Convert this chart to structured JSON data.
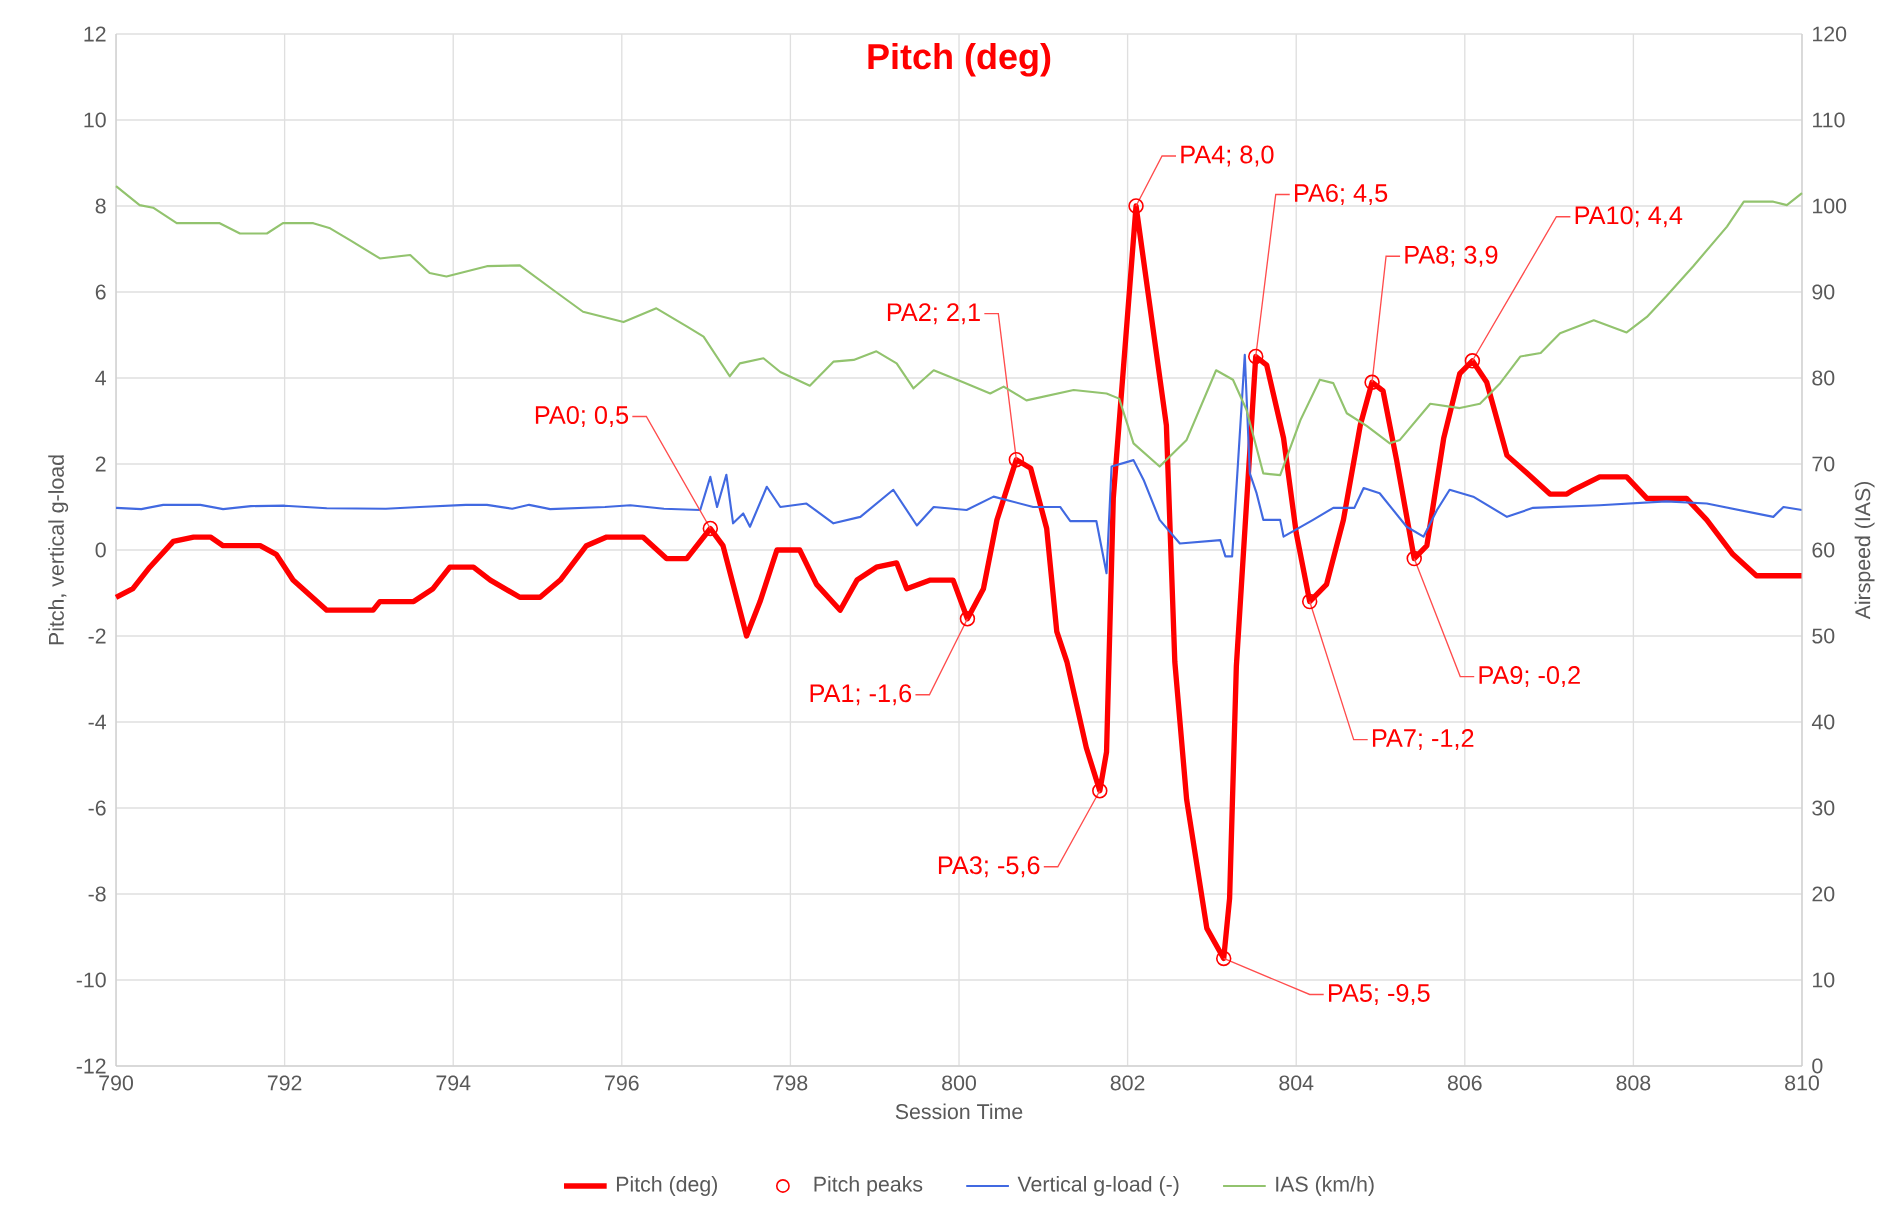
{
  "chart_data": {
    "type": "line",
    "title": "Pitch (deg)",
    "xlabel": "Session Time",
    "ylabel": "Pitch, vertical g-load",
    "y2label": "Airspeed (IAS)",
    "xlim": [
      790,
      810
    ],
    "xticks": [
      790,
      792,
      794,
      796,
      798,
      800,
      802,
      804,
      806,
      808,
      810
    ],
    "ylim": [
      -12,
      12
    ],
    "yticks": [
      -12,
      -10,
      -8,
      -6,
      -4,
      -2,
      0,
      2,
      4,
      6,
      8,
      10,
      12
    ],
    "y2lim": [
      0,
      120
    ],
    "y2ticks": [
      0,
      10,
      20,
      30,
      40,
      50,
      60,
      70,
      80,
      90,
      100,
      110,
      120
    ],
    "grid": true,
    "legend": "bottom",
    "series": [
      {
        "name": "Pitch (deg)",
        "color": "#ff0000",
        "x": [
          790,
          790.2,
          790.4,
          790.68,
          790.92,
          791.12,
          791.27,
          791.71,
          791.9,
          792.1,
          792.5,
          793.05,
          793.13,
          793.53,
          793.76,
          793.96,
          794.24,
          794.44,
          794.79,
          795.03,
          795.27,
          795.58,
          795.82,
          796.25,
          796.53,
          796.77,
          797.05,
          797.2,
          797.48,
          797.64,
          797.84,
          798.11,
          798.31,
          798.59,
          798.79,
          799.02,
          799.26,
          799.38,
          799.66,
          799.93,
          800.1,
          800.29,
          800.45,
          800.68,
          800.85,
          801.04,
          801.16,
          801.28,
          801.51,
          801.67,
          801.75,
          801.83,
          802.1,
          802.46,
          802.56,
          802.7,
          802.94,
          803.14,
          803.21,
          803.29,
          803.52,
          803.65,
          803.85,
          804.0,
          804.16,
          804.36,
          804.56,
          804.76,
          804.9,
          805.03,
          805.19,
          805.4,
          805.55,
          805.75,
          805.94,
          806.09,
          806.26,
          806.5,
          806.73,
          807.01,
          807.21,
          807.29,
          807.6,
          807.92,
          808.16,
          808.63,
          808.87,
          809.18,
          809.46,
          809.74,
          809.86,
          810
        ],
        "values": [
          -1.1,
          -0.9,
          -0.4,
          0.2,
          0.3,
          0.3,
          0.1,
          0.1,
          -0.1,
          -0.7,
          -1.4,
          -1.4,
          -1.2,
          -1.2,
          -0.9,
          -0.4,
          -0.4,
          -0.7,
          -1.1,
          -1.1,
          -0.7,
          0.1,
          0.3,
          0.3,
          -0.2,
          -0.2,
          0.5,
          0.1,
          -2.0,
          -1.2,
          0.0,
          0.0,
          -0.8,
          -1.4,
          -0.7,
          -0.4,
          -0.3,
          -0.9,
          -0.7,
          -0.7,
          -1.6,
          -0.9,
          0.7,
          2.1,
          1.9,
          0.5,
          -1.9,
          -2.6,
          -4.6,
          -5.6,
          -4.7,
          1.2,
          8.0,
          2.9,
          -2.6,
          -5.8,
          -8.8,
          -9.5,
          -8.1,
          -2.7,
          4.5,
          4.3,
          2.6,
          0.4,
          -1.2,
          -0.8,
          0.7,
          2.9,
          3.9,
          3.7,
          2.1,
          -0.2,
          0.1,
          2.6,
          4.1,
          4.4,
          3.9,
          2.2,
          1.8,
          1.3,
          1.3,
          1.4,
          1.7,
          1.7,
          1.2,
          1.2,
          0.7,
          -0.1,
          -0.6,
          -0.6,
          -0.6,
          -0.6
        ]
      },
      {
        "name": "Pitch peaks",
        "type": "scatter",
        "marker": "circle",
        "color": "#ff0000",
        "x": [
          797.05,
          800.1,
          800.68,
          801.67,
          802.1,
          803.14,
          803.52,
          804.16,
          804.9,
          805.4,
          806.09
        ],
        "values": [
          0.5,
          -1.6,
          2.1,
          -5.6,
          8.0,
          -9.5,
          4.5,
          -1.2,
          3.9,
          -0.2,
          4.4
        ]
      },
      {
        "name": "Vertical g-load (-)",
        "color": "#4169e1",
        "x": [
          790,
          790.3,
          790.56,
          791.0,
          791.27,
          791.6,
          792.0,
          792.5,
          793.2,
          793.6,
          794.15,
          794.4,
          794.7,
          794.9,
          795.15,
          795.8,
          796.1,
          796.5,
          796.93,
          797.05,
          797.13,
          797.24,
          797.32,
          797.44,
          797.52,
          797.72,
          797.88,
          798.19,
          798.51,
          798.83,
          799.22,
          799.5,
          799.7,
          800.09,
          800.41,
          800.88,
          801.2,
          801.32,
          801.63,
          801.75,
          801.81,
          802.07,
          802.19,
          802.38,
          802.62,
          803.1,
          803.16,
          803.24,
          803.39,
          803.45,
          803.53,
          803.61,
          803.81,
          803.85,
          804.2,
          804.44,
          804.69,
          804.8,
          804.99,
          805.31,
          805.51,
          805.67,
          805.82,
          806.1,
          806.5,
          806.81,
          807.6,
          808.39,
          808.87,
          809.66,
          809.78,
          810
        ],
        "values": [
          0.98,
          0.95,
          1.05,
          1.05,
          0.95,
          1.02,
          1.03,
          0.97,
          0.96,
          1.0,
          1.05,
          1.05,
          0.96,
          1.05,
          0.95,
          1.0,
          1.04,
          0.96,
          0.93,
          1.7,
          1.0,
          1.75,
          0.62,
          0.85,
          0.54,
          1.47,
          1.0,
          1.08,
          0.62,
          0.77,
          1.4,
          0.57,
          1.0,
          0.93,
          1.24,
          1.0,
          1.0,
          0.67,
          0.67,
          -0.54,
          1.94,
          2.09,
          1.63,
          0.7,
          0.15,
          0.23,
          -0.15,
          -0.15,
          4.54,
          1.78,
          1.32,
          0.7,
          0.7,
          0.31,
          0.7,
          0.98,
          0.98,
          1.44,
          1.32,
          0.54,
          0.31,
          0.93,
          1.4,
          1.24,
          0.77,
          0.98,
          1.04,
          1.13,
          1.08,
          0.77,
          1.0,
          0.93
        ]
      },
      {
        "name": "IAS (km/h)",
        "axis": "y2",
        "color": "#92c36e",
        "x": [
          790,
          790.28,
          790.44,
          790.72,
          791.23,
          791.47,
          791.79,
          791.98,
          792.34,
          792.54,
          792.78,
          793.13,
          793.49,
          793.72,
          793.92,
          794.4,
          794.79,
          795.19,
          795.54,
          796.02,
          796.41,
          796.77,
          796.97,
          797.28,
          797.4,
          797.68,
          797.88,
          798.23,
          798.51,
          798.75,
          799.02,
          799.26,
          799.46,
          799.7,
          800.05,
          800.37,
          800.53,
          800.8,
          801.36,
          801.75,
          801.9,
          802.07,
          802.38,
          802.7,
          803.05,
          803.25,
          803.41,
          803.61,
          803.81,
          804.05,
          804.28,
          804.44,
          804.6,
          804.84,
          805.11,
          805.23,
          805.59,
          805.94,
          806.18,
          806.42,
          806.66,
          806.9,
          807.13,
          807.53,
          807.92,
          808.16,
          808.39,
          808.71,
          809.11,
          809.31,
          809.66,
          809.82,
          810
        ],
        "values": [
          102.3,
          100.1,
          99.8,
          98.0,
          98.0,
          96.8,
          96.8,
          98.0,
          98.0,
          97.4,
          96.0,
          93.9,
          94.3,
          92.2,
          91.8,
          93.0,
          93.1,
          90.2,
          87.7,
          86.5,
          88.1,
          86.0,
          84.8,
          80.2,
          81.7,
          82.3,
          80.7,
          79.1,
          81.9,
          82.1,
          83.1,
          81.7,
          78.8,
          80.9,
          79.5,
          78.2,
          79.0,
          77.4,
          78.6,
          78.2,
          77.6,
          72.4,
          69.7,
          72.8,
          80.9,
          79.8,
          76.3,
          68.9,
          68.7,
          75.1,
          79.8,
          79.4,
          75.9,
          74.4,
          72.4,
          72.8,
          77.0,
          76.5,
          77.0,
          79.4,
          82.5,
          82.9,
          85.2,
          86.7,
          85.3,
          87.1,
          89.5,
          93.0,
          97.6,
          100.5,
          100.5,
          100.1,
          101.5
        ]
      }
    ],
    "annotations": [
      {
        "text": "PA0; 0,5",
        "x": 797.05,
        "y": 0.5
      },
      {
        "text": "PA1; -1,6",
        "x": 800.1,
        "y": -1.6
      },
      {
        "text": "PA2; 2,1",
        "x": 800.68,
        "y": 2.1
      },
      {
        "text": "PA3; -5,6",
        "x": 801.67,
        "y": -5.6
      },
      {
        "text": "PA4; 8,0",
        "x": 802.1,
        "y": 8.0
      },
      {
        "text": "PA5; -9,5",
        "x": 803.14,
        "y": -9.5
      },
      {
        "text": "PA6; 4,5",
        "x": 803.52,
        "y": 4.5
      },
      {
        "text": "PA7; -1,2",
        "x": 804.16,
        "y": -1.2
      },
      {
        "text": "PA8; 3,9",
        "x": 804.9,
        "y": 3.9
      },
      {
        "text": "PA9; -0,2",
        "x": 805.4,
        "y": -0.2
      },
      {
        "text": "PA10; 4,4",
        "x": 806.09,
        "y": 4.4
      }
    ]
  }
}
